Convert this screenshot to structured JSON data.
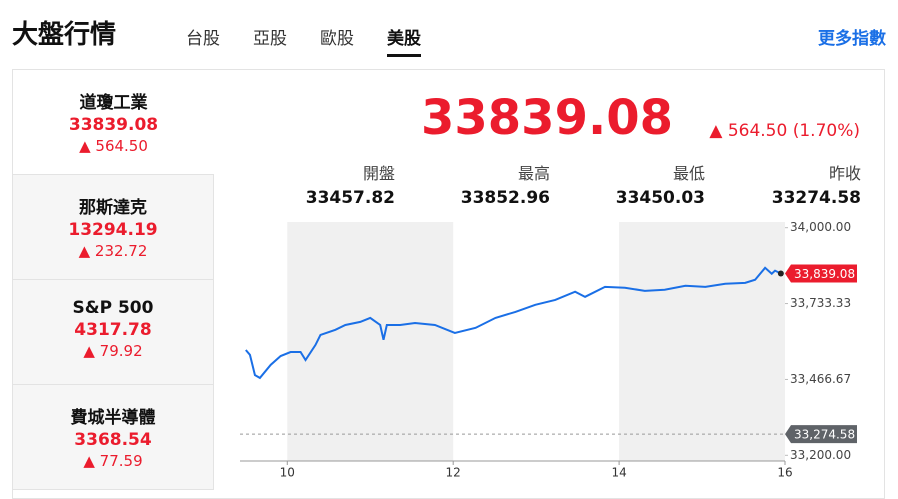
{
  "header": {
    "title": "大盤行情",
    "tabs": [
      "台股",
      "亞股",
      "歐股",
      "美股"
    ],
    "active_tab": 3,
    "more_link": "更多指數"
  },
  "indices": [
    {
      "name": "道瓊工業",
      "price": "33839.08",
      "change": "564.50"
    },
    {
      "name": "那斯達克",
      "price": "13294.19",
      "change": "232.72"
    },
    {
      "name": "S&P 500",
      "price": "4317.78",
      "change": "79.92"
    },
    {
      "name": "費城半導體",
      "price": "3368.54",
      "change": "77.59"
    }
  ],
  "quote": {
    "price": "33839.08",
    "change": "564.50 (1.70%)",
    "stats": [
      {
        "label": "開盤",
        "value": "33457.82"
      },
      {
        "label": "最高",
        "value": "33852.96"
      },
      {
        "label": "最低",
        "value": "33450.03"
      },
      {
        "label": "昨收",
        "value": "33274.58"
      }
    ]
  },
  "chart_data": {
    "type": "line",
    "color": "#1a6fe6",
    "x": [
      9.5,
      9.55,
      9.61,
      9.67,
      9.8,
      9.92,
      10.04,
      10.16,
      10.22,
      10.34,
      10.4,
      10.58,
      10.7,
      10.88,
      11.0,
      11.12,
      11.16,
      11.2,
      11.36,
      11.54,
      11.78,
      12.02,
      12.27,
      12.51,
      12.75,
      12.99,
      13.23,
      13.47,
      13.59,
      13.83,
      14.07,
      14.31,
      14.55,
      14.8,
      15.04,
      15.28,
      15.52,
      15.64,
      15.76,
      15.84,
      15.88,
      15.95
    ],
    "values": [
      33570,
      33553,
      33482,
      33472,
      33518,
      33549,
      33563,
      33563,
      33535,
      33588,
      33623,
      33641,
      33658,
      33669,
      33683,
      33658,
      33606,
      33658,
      33658,
      33665,
      33658,
      33630,
      33648,
      33683,
      33704,
      33729,
      33746,
      33775,
      33757,
      33792,
      33789,
      33778,
      33782,
      33796,
      33792,
      33803,
      33806,
      33817,
      33859,
      33838,
      33849,
      33839.08
    ],
    "xlim": [
      9.43,
      16
    ],
    "xticks": [
      10,
      12,
      14,
      16
    ],
    "ylim": [
      33180,
      34020
    ],
    "yticks": [
      {
        "value": 33200,
        "label": "33,200.00"
      },
      {
        "value": 33466.67,
        "label": "33,466.67"
      },
      {
        "value": 33733.33,
        "label": "33,733.33"
      },
      {
        "value": 34000,
        "label": "34,000.00"
      }
    ],
    "reference_line": {
      "value": 33274.58,
      "label": "33,274.58"
    },
    "last_price": {
      "value": 33839.08,
      "label": "33,839.08"
    }
  }
}
